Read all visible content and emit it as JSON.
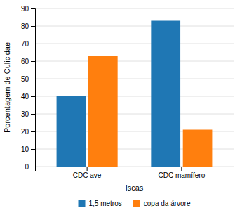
{
  "chart_data": {
    "type": "bar",
    "categories": [
      "CDC ave",
      "CDC mamífero"
    ],
    "series": [
      {
        "name": "1,5 metros",
        "values": [
          40,
          83
        ]
      },
      {
        "name": "copa da árvore",
        "values": [
          63,
          21
        ]
      }
    ],
    "xlabel": "Iscas",
    "ylabel": "Porcentagem de Culicidae",
    "ylim": [
      0,
      90
    ],
    "yticks": [
      0,
      10,
      20,
      30,
      40,
      50,
      60,
      70,
      80,
      90
    ],
    "grid": true,
    "legend": "bottom"
  }
}
